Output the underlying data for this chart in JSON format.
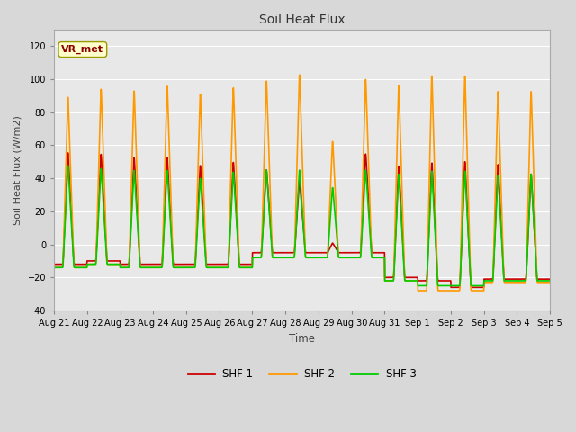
{
  "title": "Soil Heat Flux",
  "ylabel": "Soil Heat Flux (W/m2)",
  "xlabel": "Time",
  "ylim": [
    -40,
    130
  ],
  "yticks": [
    -40,
    -20,
    0,
    20,
    40,
    60,
    80,
    100,
    120
  ],
  "fig_bg_color": "#d8d8d8",
  "plot_bg_color": "#e8e8e8",
  "grid_color": "white",
  "line_colors": {
    "SHF 1": "#cc0000",
    "SHF 2": "#ff9900",
    "SHF 3": "#00cc00"
  },
  "line_widths": {
    "SHF 1": 1.2,
    "SHF 2": 1.2,
    "SHF 3": 1.2
  },
  "annotation_text": "VR_met",
  "annotation_box_color": "#ffffcc",
  "annotation_box_edgecolor": "#999900",
  "annotation_text_color": "#8b0000",
  "x_tick_labels": [
    "Aug 21",
    "Aug 22",
    "Aug 23",
    "Aug 24",
    "Aug 25",
    "Aug 26",
    "Aug 27",
    "Aug 28",
    "Aug 29",
    "Aug 30",
    "Aug 31",
    "Sep 1",
    "Sep 2",
    "Sep 3",
    "Sep 4",
    "Sep 5"
  ],
  "n_days": 15,
  "pts_per_day": 144,
  "shf1_peaks": [
    58,
    57,
    55,
    55,
    50,
    52,
    47,
    40,
    1,
    57,
    50,
    52,
    53,
    51,
    45
  ],
  "shf2_peaks": [
    93,
    98,
    97,
    100,
    95,
    99,
    103,
    107,
    65,
    104,
    101,
    107,
    107,
    97,
    97
  ],
  "shf3_peaks": [
    50,
    48,
    47,
    47,
    42,
    46,
    47,
    47,
    36,
    47,
    45,
    47,
    47,
    44,
    45
  ],
  "shf1_troughs": [
    -12,
    -10,
    -12,
    -12,
    -12,
    -12,
    -5,
    -5,
    -5,
    -5,
    -20,
    -22,
    -26,
    -21,
    -21
  ],
  "shf2_troughs": [
    -14,
    -12,
    -14,
    -14,
    -14,
    -14,
    -8,
    -8,
    -8,
    -8,
    -22,
    -28,
    -28,
    -23,
    -23
  ],
  "shf3_troughs": [
    -14,
    -12,
    -14,
    -14,
    -14,
    -14,
    -8,
    -8,
    -8,
    -8,
    -22,
    -25,
    -25,
    -22,
    -22
  ]
}
